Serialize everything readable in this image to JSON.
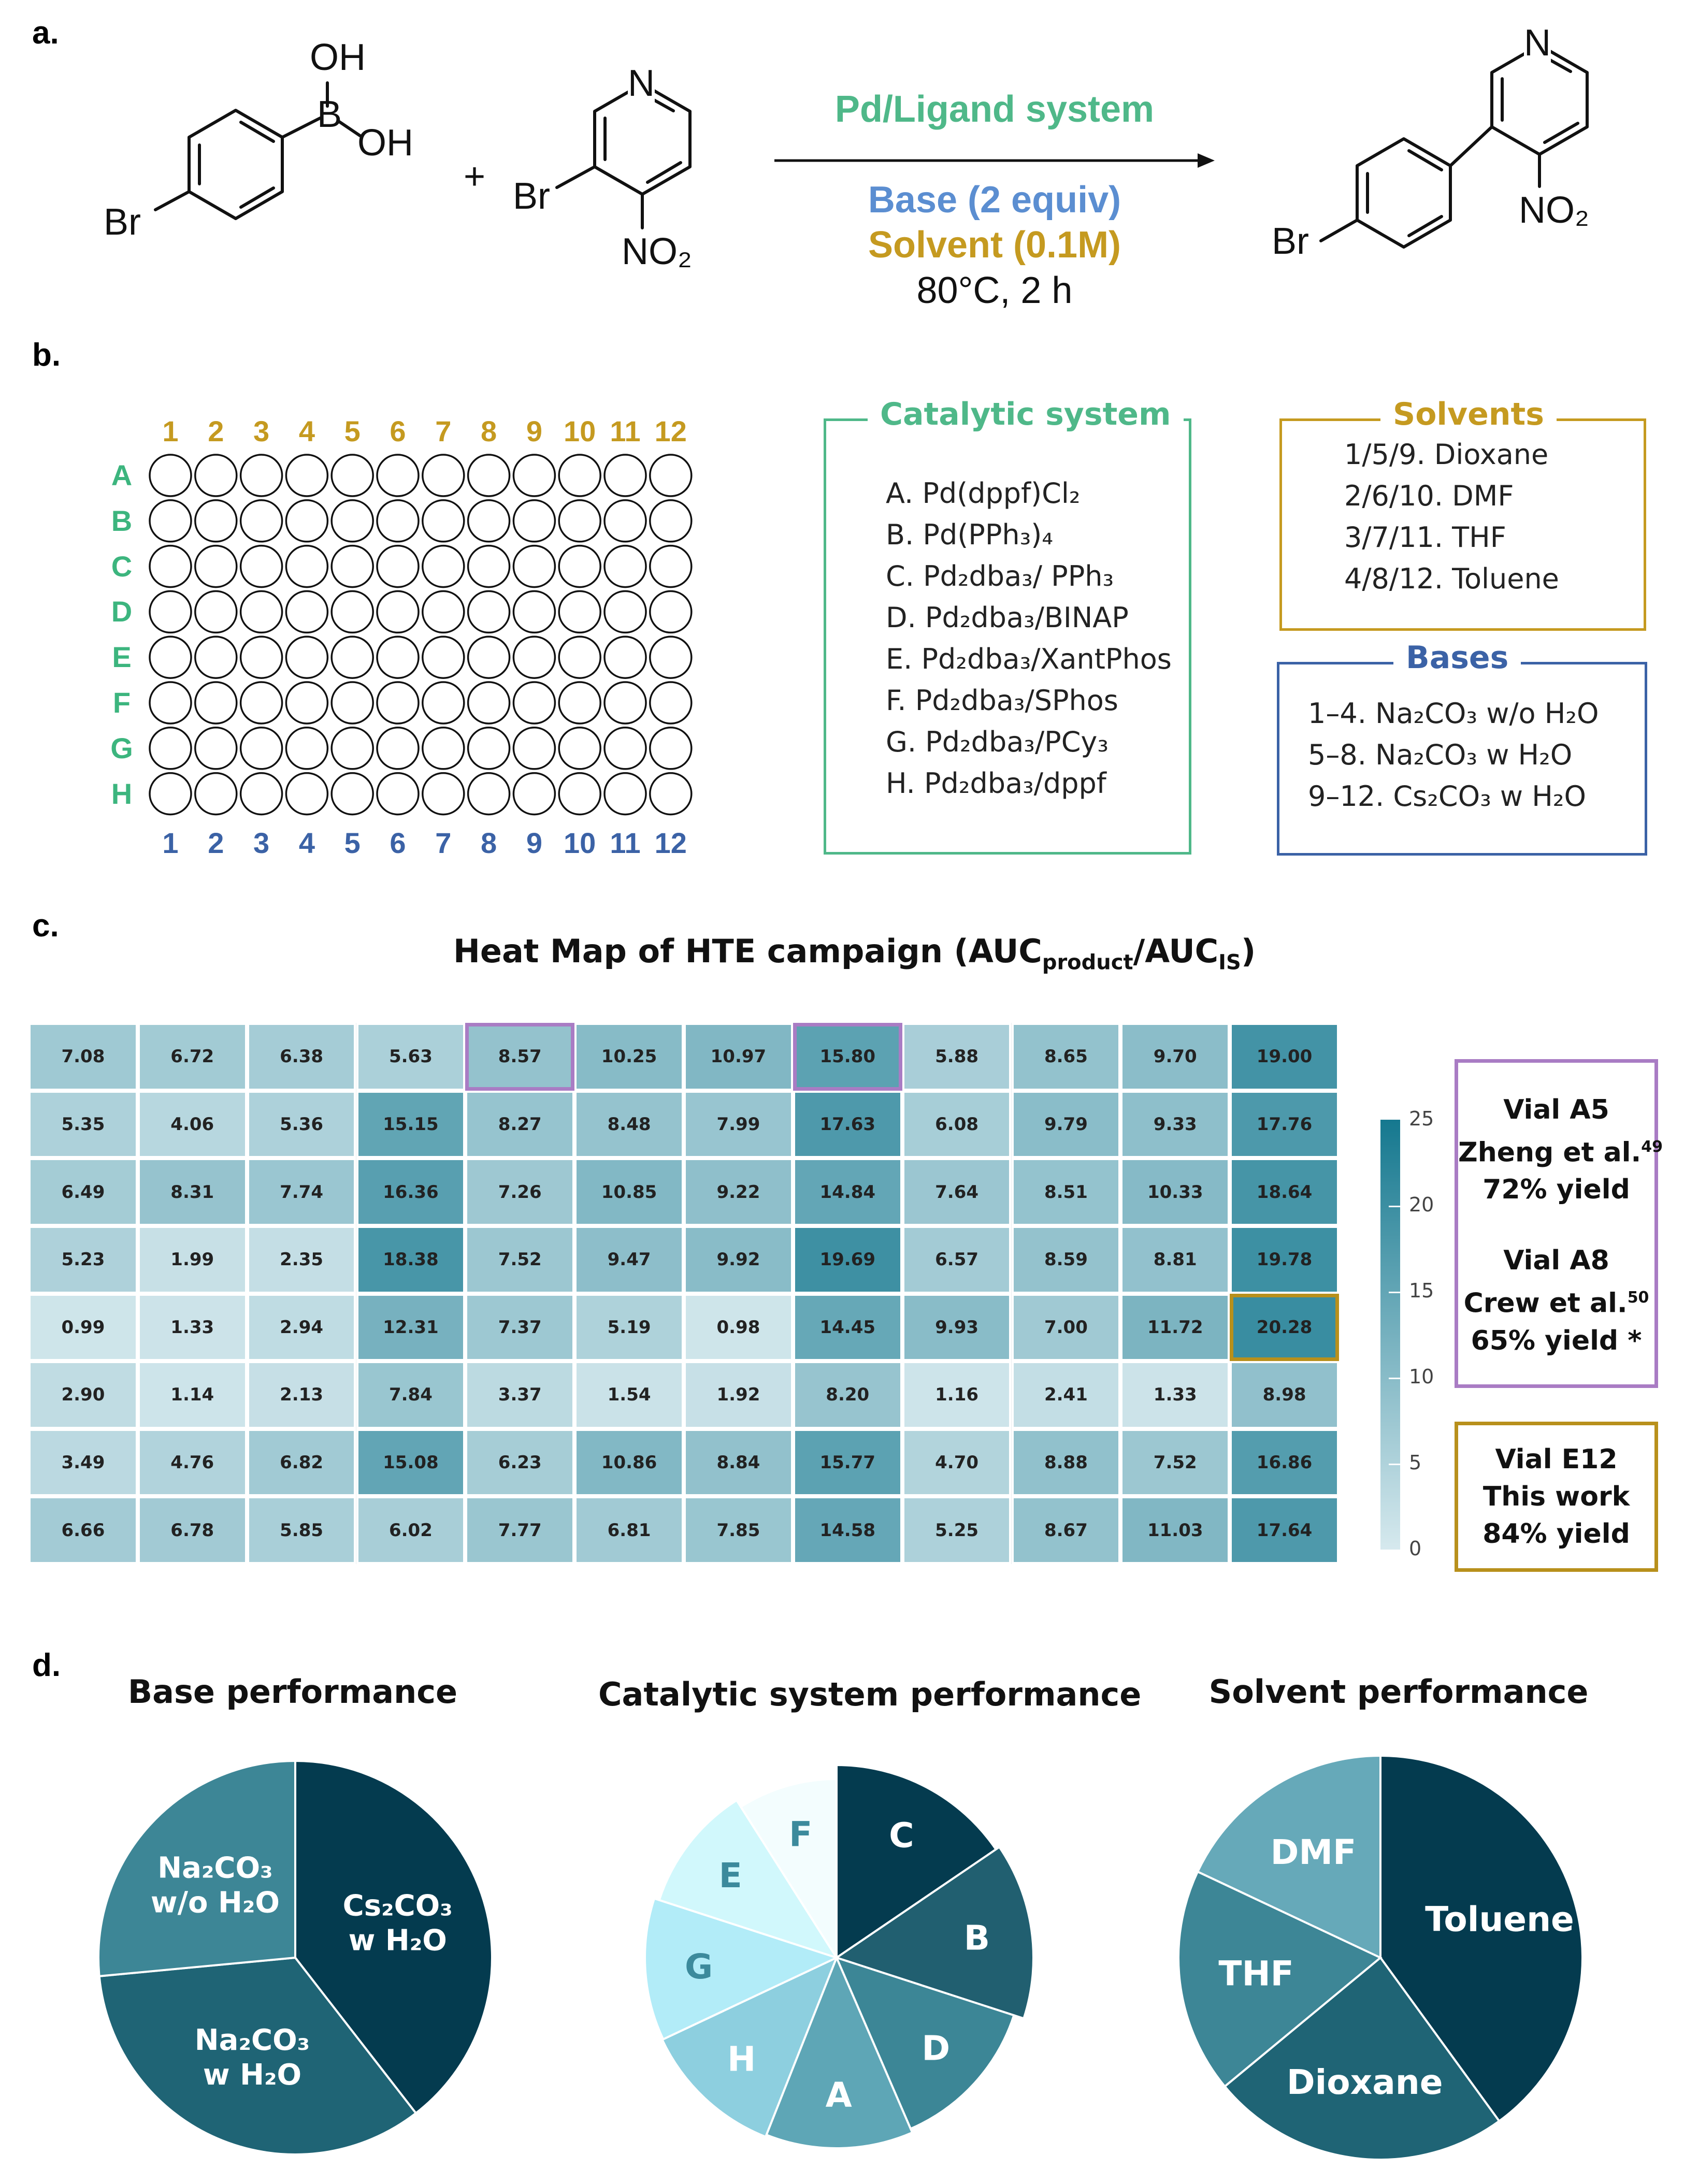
{
  "panels": {
    "a": "a.",
    "b": "b.",
    "c": "c.",
    "d": "d."
  },
  "reaction": {
    "boronic_oh_top": "OH",
    "boronic_b": "B",
    "boronic_oh_right": "OH",
    "reactant1_br": "Br",
    "plus": "+",
    "reactant2_n": "N",
    "reactant2_br": "Br",
    "reactant2_no2": "NO₂",
    "conditions": {
      "catalyst": "Pd/Ligand system",
      "base": "Base (2 equiv)",
      "solvent": "Solvent (0.1M)",
      "temp_time": "80°C, 2 h"
    },
    "product_n": "N",
    "product_no2": "NO₂",
    "product_br": "Br"
  },
  "plate": {
    "top_columns": [
      "1",
      "2",
      "3",
      "4",
      "5",
      "6",
      "7",
      "8",
      "9",
      "10",
      "11",
      "12"
    ],
    "bottom_columns": [
      "1",
      "2",
      "3",
      "4",
      "5",
      "6",
      "7",
      "8",
      "9",
      "10",
      "11",
      "12"
    ],
    "rows": [
      "A",
      "B",
      "C",
      "D",
      "E",
      "F",
      "G",
      "H"
    ]
  },
  "catalytic_system": {
    "title": "Catalytic system",
    "items": [
      "A. Pd(dppf)Cl₂",
      "B. Pd(PPh₃)₄",
      "C. Pd₂dba₃/ PPh₃",
      "D. Pd₂dba₃/BINAP",
      "E. Pd₂dba₃/XantPhos",
      "F. Pd₂dba₃/SPhos",
      "G. Pd₂dba₃/PCy₃",
      "H. Pd₂dba₃/dppf"
    ]
  },
  "solvents": {
    "title": "Solvents",
    "items": [
      "1/5/9. Dioxane",
      "2/6/10. DMF",
      "3/7/11. THF",
      "4/8/12. Toluene"
    ]
  },
  "bases": {
    "title": "Bases",
    "items": [
      "1–4. Na₂CO₃ w/o H₂O",
      "5–8. Na₂CO₃ w H₂O",
      "9–12. Cs₂CO₃ w H₂O"
    ]
  },
  "heatmap": {
    "title_main": "Heat Map of HTE campaign (AUC",
    "title_sub1": "product",
    "title_mid": "/AUC",
    "title_sub2": "IS",
    "title_end": ")",
    "colorbar_ticks": [
      "0",
      "5",
      "10",
      "15",
      "20",
      "25"
    ],
    "highlight_purple": [
      "A5",
      "A8"
    ],
    "highlight_gold": [
      "E12"
    ],
    "colors": {
      "low": "#d6e9ee",
      "high": "#15788f",
      "purple": "#a97cc4",
      "gold": "#b8901c"
    },
    "note_purple": {
      "line1": "Vial A5",
      "line2": "Zheng et al.",
      "ref2": "49",
      "line3": "72% yield",
      "line4": "Vial A8",
      "line5": "Crew et al.",
      "ref5": "50",
      "line6": "65% yield *"
    },
    "note_gold": {
      "line1": "Vial E12",
      "line2": "This work",
      "line3": "84% yield"
    }
  },
  "chart_data": [
    {
      "type": "heatmap",
      "title": "Heat Map of HTE campaign (AUCproduct/AUCIS)",
      "rows": [
        "A",
        "B",
        "C",
        "D",
        "E",
        "F",
        "G",
        "H"
      ],
      "columns": [
        "1",
        "2",
        "3",
        "4",
        "5",
        "6",
        "7",
        "8",
        "9",
        "10",
        "11",
        "12"
      ],
      "values": [
        [
          7.08,
          6.72,
          6.38,
          5.63,
          8.57,
          10.25,
          10.97,
          15.8,
          5.88,
          8.65,
          9.7,
          19.0
        ],
        [
          5.35,
          4.06,
          5.36,
          15.15,
          8.27,
          8.48,
          7.99,
          17.63,
          6.08,
          9.79,
          9.33,
          17.76
        ],
        [
          6.49,
          8.31,
          7.74,
          16.36,
          7.26,
          10.85,
          9.22,
          14.84,
          7.64,
          8.51,
          10.33,
          18.64
        ],
        [
          5.23,
          1.99,
          2.35,
          18.38,
          7.52,
          9.47,
          9.92,
          19.69,
          6.57,
          8.59,
          8.81,
          19.78
        ],
        [
          0.99,
          1.33,
          2.94,
          12.31,
          7.37,
          5.19,
          0.98,
          14.45,
          9.93,
          7.0,
          11.72,
          20.28
        ],
        [
          2.9,
          1.14,
          2.13,
          7.84,
          3.37,
          1.54,
          1.92,
          8.2,
          1.16,
          2.41,
          1.33,
          8.98
        ],
        [
          3.49,
          4.76,
          6.82,
          15.08,
          6.23,
          10.86,
          8.84,
          15.77,
          4.7,
          8.88,
          7.52,
          16.86
        ],
        [
          6.66,
          6.78,
          5.85,
          6.02,
          7.77,
          6.81,
          7.85,
          14.58,
          5.25,
          8.67,
          11.03,
          17.64
        ]
      ],
      "value_labels": [
        [
          "7.08",
          "6.72",
          "6.38",
          "5.63",
          "8.57",
          "10.25",
          "10.97",
          "15.80",
          "5.88",
          "8.65",
          "9.70",
          "19.00"
        ],
        [
          "5.35",
          "4.06",
          "5.36",
          "15.15",
          "8.27",
          "8.48",
          "7.99",
          "17.63",
          "6.08",
          "9.79",
          "9.33",
          "17.76"
        ],
        [
          "6.49",
          "8.31",
          "7.74",
          "16.36",
          "7.26",
          "10.85",
          "9.22",
          "14.84",
          "7.64",
          "8.51",
          "10.33",
          "18.64"
        ],
        [
          "5.23",
          "1.99",
          "2.35",
          "18.38",
          "7.52",
          "9.47",
          "9.92",
          "19.69",
          "6.57",
          "8.59",
          "8.81",
          "19.78"
        ],
        [
          "0.99",
          "1.33",
          "2.94",
          "12.31",
          "7.37",
          "5.19",
          "0.98",
          "14.45",
          "9.93",
          "7.00",
          "11.72",
          "20.28"
        ],
        [
          "2.90",
          "1.14",
          "2.13",
          "7.84",
          "3.37",
          "1.54",
          "1.92",
          "8.20",
          "1.16",
          "2.41",
          "1.33",
          "8.98"
        ],
        [
          "3.49",
          "4.76",
          "6.82",
          "15.08",
          "6.23",
          "10.86",
          "8.84",
          "15.77",
          "4.70",
          "8.88",
          "7.52",
          "16.86"
        ],
        [
          "6.66",
          "6.78",
          "5.85",
          "6.02",
          "7.77",
          "6.81",
          "7.85",
          "14.58",
          "5.25",
          "8.67",
          "11.03",
          "17.64"
        ]
      ],
      "colorbar_range": [
        0,
        25
      ]
    },
    {
      "type": "pie",
      "title": "Base performance",
      "labels": [
        "Cs₂CO₃ w H₂O",
        "Na₂CO₃ w H₂O",
        "Na₂CO₃ w/o H₂O"
      ],
      "label_lines": [
        [
          "Cs₂CO₃",
          "w H₂O"
        ],
        [
          "Na₂CO₃",
          "w H₂O"
        ],
        [
          "Na₂CO₃",
          "w/o H₂O"
        ]
      ],
      "values": [
        39.5,
        34,
        26.5
      ],
      "colors": [
        "#043b4f",
        "#1f6475",
        "#3d8696"
      ]
    },
    {
      "type": "pie",
      "title": "Catalytic system performance",
      "labels": [
        "C",
        "B",
        "D",
        "A",
        "H",
        "G",
        "E",
        "F"
      ],
      "values": [
        15.5,
        14.5,
        13.5,
        12.5,
        12,
        12,
        11,
        9
      ],
      "colors": [
        "#043b4f",
        "#215f70",
        "#3c8696",
        "#5ea6b6",
        "#8dcfdf",
        "#b2ecf8",
        "#d1f8fc",
        "#f3fdfe"
      ],
      "label_colors": [
        "#ffffff",
        "#ffffff",
        "#ffffff",
        "#ffffff",
        "#ffffff",
        "#3c8a9c",
        "#3c8a9c",
        "#3c8a9c"
      ]
    },
    {
      "type": "pie",
      "title": "Solvent performance",
      "labels": [
        "Toluene",
        "Dioxane",
        "THF",
        "DMF"
      ],
      "values": [
        40,
        24,
        18,
        18
      ],
      "colors": [
        "#043b4f",
        "#1f6475",
        "#3d8696",
        "#66a9b9"
      ]
    }
  ]
}
